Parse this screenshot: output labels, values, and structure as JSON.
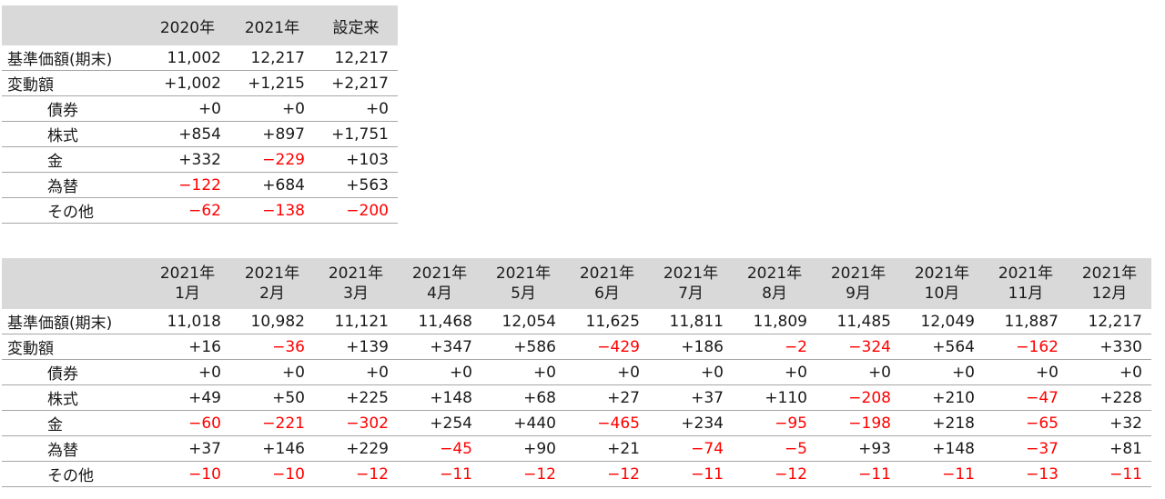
{
  "table1": {
    "headers": [
      "2020年",
      "2021年",
      "設定来"
    ],
    "rows": [
      {
        "label": "基準価額(期末)",
        "sub": false,
        "values": [
          "11,002",
          "12,217",
          "12,217"
        ]
      },
      {
        "label": "変動額",
        "sub": false,
        "values": [
          "+1,002",
          "+1,215",
          "+2,217"
        ]
      },
      {
        "label": "債券",
        "sub": true,
        "values": [
          "+0",
          "+0",
          "+0"
        ]
      },
      {
        "label": "株式",
        "sub": true,
        "values": [
          "+854",
          "+897",
          "+1,751"
        ]
      },
      {
        "label": "金",
        "sub": true,
        "values": [
          "+332",
          "−229",
          "+103"
        ]
      },
      {
        "label": "為替",
        "sub": true,
        "values": [
          "−122",
          "+684",
          "+563"
        ]
      },
      {
        "label": "その他",
        "sub": true,
        "values": [
          "−62",
          "−138",
          "−200"
        ]
      }
    ]
  },
  "table2": {
    "headers": [
      {
        "year": "2021年",
        "month": "1月"
      },
      {
        "year": "2021年",
        "month": "2月"
      },
      {
        "year": "2021年",
        "month": "3月"
      },
      {
        "year": "2021年",
        "month": "4月"
      },
      {
        "year": "2021年",
        "month": "5月"
      },
      {
        "year": "2021年",
        "month": "6月"
      },
      {
        "year": "2021年",
        "month": "7月"
      },
      {
        "year": "2021年",
        "month": "8月"
      },
      {
        "year": "2021年",
        "month": "9月"
      },
      {
        "year": "2021年",
        "month": "10月"
      },
      {
        "year": "2021年",
        "month": "11月"
      },
      {
        "year": "2021年",
        "month": "12月"
      }
    ],
    "rows": [
      {
        "label": "基準価額(期末)",
        "sub": false,
        "values": [
          "11,018",
          "10,982",
          "11,121",
          "11,468",
          "12,054",
          "11,625",
          "11,811",
          "11,809",
          "11,485",
          "12,049",
          "11,887",
          "12,217"
        ]
      },
      {
        "label": "変動額",
        "sub": false,
        "values": [
          "+16",
          "−36",
          "+139",
          "+347",
          "+586",
          "−429",
          "+186",
          "−2",
          "−324",
          "+564",
          "−162",
          "+330"
        ]
      },
      {
        "label": "債券",
        "sub": true,
        "values": [
          "+0",
          "+0",
          "+0",
          "+0",
          "+0",
          "+0",
          "+0",
          "+0",
          "+0",
          "+0",
          "+0",
          "+0"
        ]
      },
      {
        "label": "株式",
        "sub": true,
        "values": [
          "+49",
          "+50",
          "+225",
          "+148",
          "+68",
          "+27",
          "+37",
          "+110",
          "−208",
          "+210",
          "−47",
          "+228"
        ]
      },
      {
        "label": "金",
        "sub": true,
        "values": [
          "−60",
          "−221",
          "−302",
          "+254",
          "+440",
          "−465",
          "+234",
          "−95",
          "−198",
          "+218",
          "−65",
          "+32"
        ]
      },
      {
        "label": "為替",
        "sub": true,
        "values": [
          "+37",
          "+146",
          "+229",
          "−45",
          "+90",
          "+21",
          "−74",
          "−5",
          "+93",
          "+148",
          "−37",
          "+81"
        ]
      },
      {
        "label": "その他",
        "sub": true,
        "values": [
          "−10",
          "−10",
          "−12",
          "−11",
          "−12",
          "−12",
          "−11",
          "−12",
          "−11",
          "−11",
          "−13",
          "−11"
        ]
      }
    ]
  },
  "colors": {
    "negative": "#ff0000",
    "header_bg": "#d9d9d9",
    "rule": "#a6a6a6"
  }
}
